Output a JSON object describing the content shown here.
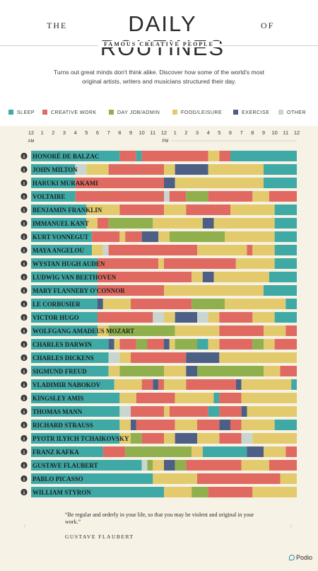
{
  "header": {
    "title_pre": "THE",
    "title_main": "DAILY ROUTINES",
    "title_post": "OF",
    "subtitle": "FAMOUS CREATIVE PEOPLE",
    "intro": "Turns out great minds don't think alike. Discover how some of the world's most original artists, writers and musicians structured their day."
  },
  "legend": [
    {
      "key": "sleep",
      "label": "SLEEP"
    },
    {
      "key": "creative",
      "label": "CREATIVE WORK"
    },
    {
      "key": "dayjob",
      "label": "DAY JOB/ADMIN"
    },
    {
      "key": "food",
      "label": "FOOD/LEISURE"
    },
    {
      "key": "exercise",
      "label": "EXERCISE"
    },
    {
      "key": "other",
      "label": "OTHER"
    }
  ],
  "colors": {
    "sleep": "#3fa9a6",
    "creative": "#e06a61",
    "dayjob": "#8fb04d",
    "food": "#e3cb6d",
    "exercise": "#4d5f85",
    "other": "#c9d6d0",
    "background": "#f7f2e6",
    "info_icon": "#3a3a3a"
  },
  "chart_data": {
    "type": "bar",
    "orientation": "horizontal-timeline",
    "x_unit": "hour of day (0 = 12 AM, 24 = 12 AM next day)",
    "xlim": [
      0,
      24
    ],
    "x_ticks": [
      "12",
      "1",
      "2",
      "3",
      "4",
      "5",
      "6",
      "7",
      "8",
      "9",
      "10",
      "11",
      "12",
      "1",
      "2",
      "3",
      "4",
      "5",
      "6",
      "7",
      "8",
      "9",
      "10",
      "11",
      "12"
    ],
    "am_label": "AM",
    "pm_label": "PM",
    "people": [
      {
        "name": "HONORÉ DE BALZAC",
        "segments": [
          [
            "sleep",
            0,
            8
          ],
          [
            "creative",
            8,
            9.5
          ],
          [
            "sleep",
            9.5,
            10
          ],
          [
            "creative",
            10,
            16
          ],
          [
            "food",
            16,
            17
          ],
          [
            "creative",
            17,
            18
          ],
          [
            "sleep",
            18,
            24
          ]
        ]
      },
      {
        "name": "JOHN MILTON",
        "segments": [
          [
            "sleep",
            0,
            4
          ],
          [
            "other",
            4,
            5
          ],
          [
            "food",
            5,
            7
          ],
          [
            "creative",
            7,
            12
          ],
          [
            "food",
            12,
            13
          ],
          [
            "exercise",
            13,
            16
          ],
          [
            "food",
            16,
            21
          ],
          [
            "sleep",
            21,
            24
          ]
        ]
      },
      {
        "name": "HARUKI MURAKAMI",
        "segments": [
          [
            "sleep",
            0,
            4
          ],
          [
            "creative",
            4,
            12
          ],
          [
            "exercise",
            12,
            13
          ],
          [
            "food",
            13,
            21
          ],
          [
            "sleep",
            21,
            24
          ]
        ]
      },
      {
        "name": "VOLTAIRE",
        "segments": [
          [
            "sleep",
            0,
            4
          ],
          [
            "creative",
            4,
            12
          ],
          [
            "other",
            12,
            12.5
          ],
          [
            "creative",
            12.5,
            14
          ],
          [
            "dayjob",
            14,
            16
          ],
          [
            "creative",
            16,
            20
          ],
          [
            "food",
            20,
            21.5
          ],
          [
            "creative",
            21.5,
            24
          ]
        ]
      },
      {
        "name": "BENJAMIN FRANKLIN",
        "segments": [
          [
            "sleep",
            0,
            5
          ],
          [
            "food",
            5,
            8
          ],
          [
            "creative",
            8,
            12
          ],
          [
            "food",
            12,
            14
          ],
          [
            "creative",
            14,
            18
          ],
          [
            "food",
            18,
            22
          ],
          [
            "sleep",
            22,
            24
          ]
        ]
      },
      {
        "name": "IMMANUEL KANT",
        "segments": [
          [
            "sleep",
            0,
            5
          ],
          [
            "food",
            5,
            6
          ],
          [
            "creative",
            6,
            7
          ],
          [
            "dayjob",
            7,
            11
          ],
          [
            "food",
            11,
            15.5
          ],
          [
            "exercise",
            15.5,
            16.5
          ],
          [
            "food",
            16.5,
            22
          ],
          [
            "sleep",
            22,
            24
          ]
        ]
      },
      {
        "name": "KURT VONNEGUT",
        "segments": [
          [
            "sleep",
            0,
            5.5
          ],
          [
            "creative",
            5.5,
            8
          ],
          [
            "food",
            8,
            8.5
          ],
          [
            "creative",
            8.5,
            10
          ],
          [
            "exercise",
            10,
            11.5
          ],
          [
            "food",
            11.5,
            12.5
          ],
          [
            "dayjob",
            12.5,
            17.5
          ],
          [
            "food",
            17.5,
            22
          ],
          [
            "sleep",
            22,
            24
          ]
        ]
      },
      {
        "name": "MAYA ANGELOU",
        "segments": [
          [
            "sleep",
            0,
            5.5
          ],
          [
            "food",
            5.5,
            6.5
          ],
          [
            "other",
            6.5,
            7
          ],
          [
            "creative",
            7,
            15
          ],
          [
            "food",
            15,
            19.5
          ],
          [
            "creative",
            19.5,
            20
          ],
          [
            "food",
            20,
            22
          ],
          [
            "sleep",
            22,
            24
          ]
        ]
      },
      {
        "name": "WYSTAN HUGH AUDEN",
        "segments": [
          [
            "sleep",
            0,
            6
          ],
          [
            "creative",
            6,
            11.5
          ],
          [
            "food",
            11.5,
            12
          ],
          [
            "creative",
            12,
            18.5
          ],
          [
            "food",
            18.5,
            22
          ],
          [
            "sleep",
            22,
            24
          ]
        ]
      },
      {
        "name": "LUDWIG VAN BEETHOVEN",
        "segments": [
          [
            "sleep",
            0,
            6
          ],
          [
            "creative",
            6,
            14.5
          ],
          [
            "food",
            14.5,
            15.5
          ],
          [
            "exercise",
            15.5,
            16.5
          ],
          [
            "food",
            16.5,
            21.5
          ],
          [
            "sleep",
            21.5,
            24
          ]
        ]
      },
      {
        "name": "MARY FLANNERY O'CONNOR",
        "segments": [
          [
            "sleep",
            0,
            6
          ],
          [
            "creative",
            6,
            12
          ],
          [
            "food",
            12,
            21
          ],
          [
            "sleep",
            21,
            24
          ]
        ]
      },
      {
        "name": "LE CORBUSIER",
        "segments": [
          [
            "sleep",
            0,
            6
          ],
          [
            "exercise",
            6,
            6.5
          ],
          [
            "food",
            6.5,
            9
          ],
          [
            "creative",
            9,
            14.5
          ],
          [
            "dayjob",
            14.5,
            17.5
          ],
          [
            "food",
            17.5,
            23
          ],
          [
            "sleep",
            23,
            24
          ]
        ]
      },
      {
        "name": "VICTOR HUGO",
        "segments": [
          [
            "sleep",
            0,
            6
          ],
          [
            "creative",
            6,
            11
          ],
          [
            "other",
            11,
            12
          ],
          [
            "food",
            12,
            13
          ],
          [
            "exercise",
            13,
            15
          ],
          [
            "other",
            15,
            16
          ],
          [
            "food",
            16,
            17
          ],
          [
            "creative",
            17,
            20
          ],
          [
            "food",
            20,
            22
          ],
          [
            "sleep",
            22,
            24
          ]
        ]
      },
      {
        "name": "WOLFGANG AMADEUS MOZART",
        "segments": [
          [
            "sleep",
            0,
            6
          ],
          [
            "food",
            6,
            7
          ],
          [
            "dayjob",
            7,
            13
          ],
          [
            "food",
            13,
            17
          ],
          [
            "creative",
            17,
            21
          ],
          [
            "food",
            21,
            23
          ],
          [
            "creative",
            23,
            24
          ]
        ]
      },
      {
        "name": "CHARLES DARWIN",
        "segments": [
          [
            "sleep",
            0,
            7
          ],
          [
            "exercise",
            7,
            7.5
          ],
          [
            "food",
            7.5,
            8
          ],
          [
            "creative",
            8,
            9.5
          ],
          [
            "dayjob",
            9.5,
            10.5
          ],
          [
            "creative",
            10.5,
            12
          ],
          [
            "exercise",
            12,
            12.5
          ],
          [
            "food",
            12.5,
            13
          ],
          [
            "dayjob",
            13,
            15
          ],
          [
            "sleep",
            15,
            16
          ],
          [
            "food",
            16,
            17
          ],
          [
            "creative",
            17,
            20
          ],
          [
            "dayjob",
            20,
            21
          ],
          [
            "food",
            21,
            22
          ],
          [
            "creative",
            22,
            24
          ]
        ]
      },
      {
        "name": "CHARLES DICKENS",
        "segments": [
          [
            "sleep",
            0,
            7
          ],
          [
            "other",
            7,
            8
          ],
          [
            "food",
            8,
            9
          ],
          [
            "creative",
            9,
            14
          ],
          [
            "exercise",
            14,
            17
          ],
          [
            "food",
            17,
            24
          ]
        ]
      },
      {
        "name": "SIGMUND FREUD",
        "segments": [
          [
            "sleep",
            0,
            7
          ],
          [
            "food",
            7,
            8
          ],
          [
            "dayjob",
            8,
            12
          ],
          [
            "food",
            12,
            14
          ],
          [
            "exercise",
            14,
            15
          ],
          [
            "dayjob",
            15,
            21
          ],
          [
            "food",
            21,
            22.5
          ],
          [
            "creative",
            22.5,
            24
          ]
        ]
      },
      {
        "name": "VLADIMIR NABOKOV",
        "segments": [
          [
            "sleep",
            0,
            7.5
          ],
          [
            "food",
            7.5,
            10
          ],
          [
            "creative",
            10,
            11
          ],
          [
            "exercise",
            11,
            11.5
          ],
          [
            "creative",
            11.5,
            12
          ],
          [
            "food",
            12,
            14
          ],
          [
            "creative",
            14,
            18.5
          ],
          [
            "exercise",
            18.5,
            19
          ],
          [
            "food",
            19,
            23.5
          ],
          [
            "sleep",
            23.5,
            24
          ]
        ]
      },
      {
        "name": "KINGSLEY AMIS",
        "segments": [
          [
            "sleep",
            0,
            8
          ],
          [
            "food",
            8,
            9.5
          ],
          [
            "creative",
            9.5,
            13
          ],
          [
            "food",
            13,
            16.5
          ],
          [
            "sleep",
            16.5,
            17
          ],
          [
            "creative",
            17,
            19
          ],
          [
            "food",
            19,
            24
          ]
        ]
      },
      {
        "name": "THOMAS MANN",
        "segments": [
          [
            "sleep",
            0,
            8
          ],
          [
            "other",
            8,
            9
          ],
          [
            "creative",
            9,
            12
          ],
          [
            "food",
            12,
            12.5
          ],
          [
            "creative",
            12.5,
            16
          ],
          [
            "sleep",
            16,
            17
          ],
          [
            "creative",
            17,
            19
          ],
          [
            "exercise",
            19,
            19.5
          ],
          [
            "food",
            19.5,
            24
          ]
        ]
      },
      {
        "name": "RICHARD STRAUSS",
        "segments": [
          [
            "sleep",
            0,
            8
          ],
          [
            "food",
            8,
            9
          ],
          [
            "exercise",
            9,
            9.5
          ],
          [
            "creative",
            9.5,
            13
          ],
          [
            "food",
            13,
            15
          ],
          [
            "creative",
            15,
            17
          ],
          [
            "exercise",
            17,
            18
          ],
          [
            "creative",
            18,
            19
          ],
          [
            "food",
            19,
            22
          ],
          [
            "sleep",
            22,
            24
          ]
        ]
      },
      {
        "name": "PYOTR ILYICH TCHAIKOVSKY",
        "segments": [
          [
            "sleep",
            0,
            8
          ],
          [
            "food",
            8,
            9
          ],
          [
            "dayjob",
            9,
            10
          ],
          [
            "creative",
            10,
            12
          ],
          [
            "food",
            12,
            13
          ],
          [
            "exercise",
            13,
            15
          ],
          [
            "food",
            15,
            17
          ],
          [
            "creative",
            17,
            19
          ],
          [
            "other",
            19,
            20
          ],
          [
            "food",
            20,
            24
          ]
        ]
      },
      {
        "name": "FRANZ KAFKA",
        "segments": [
          [
            "sleep",
            0,
            6.5
          ],
          [
            "creative",
            6.5,
            8.5
          ],
          [
            "dayjob",
            8.5,
            14.5
          ],
          [
            "food",
            14.5,
            15.5
          ],
          [
            "sleep",
            15.5,
            19.5
          ],
          [
            "exercise",
            19.5,
            21
          ],
          [
            "food",
            21,
            23
          ],
          [
            "creative",
            23,
            24
          ]
        ]
      },
      {
        "name": "GUSTAVE FLAUBERT",
        "segments": [
          [
            "sleep",
            0,
            10
          ],
          [
            "other",
            10,
            10.5
          ],
          [
            "dayjob",
            10.5,
            11
          ],
          [
            "food",
            11,
            12
          ],
          [
            "exercise",
            12,
            13
          ],
          [
            "dayjob",
            13,
            14
          ],
          [
            "creative",
            14,
            19
          ],
          [
            "food",
            19,
            21.5
          ],
          [
            "creative",
            21.5,
            24
          ]
        ]
      },
      {
        "name": "PABLO PICASSO",
        "segments": [
          [
            "sleep",
            0,
            11
          ],
          [
            "food",
            11,
            15
          ],
          [
            "creative",
            15,
            22.5
          ],
          [
            "food",
            22.5,
            24
          ]
        ]
      },
      {
        "name": "WILLIAM STYRON",
        "segments": [
          [
            "sleep",
            0,
            12
          ],
          [
            "food",
            12,
            14.5
          ],
          [
            "dayjob",
            14.5,
            16
          ],
          [
            "creative",
            16,
            20
          ],
          [
            "food",
            20,
            24
          ]
        ]
      }
    ]
  },
  "quote": {
    "text": "“Be regular and orderly in your life, so that you may be violent and original in your work.”",
    "author": "GUSTAVE FLAUBERT",
    "prev_arrow": "‹",
    "next_arrow": "›"
  },
  "brand": {
    "name": "Podio"
  }
}
